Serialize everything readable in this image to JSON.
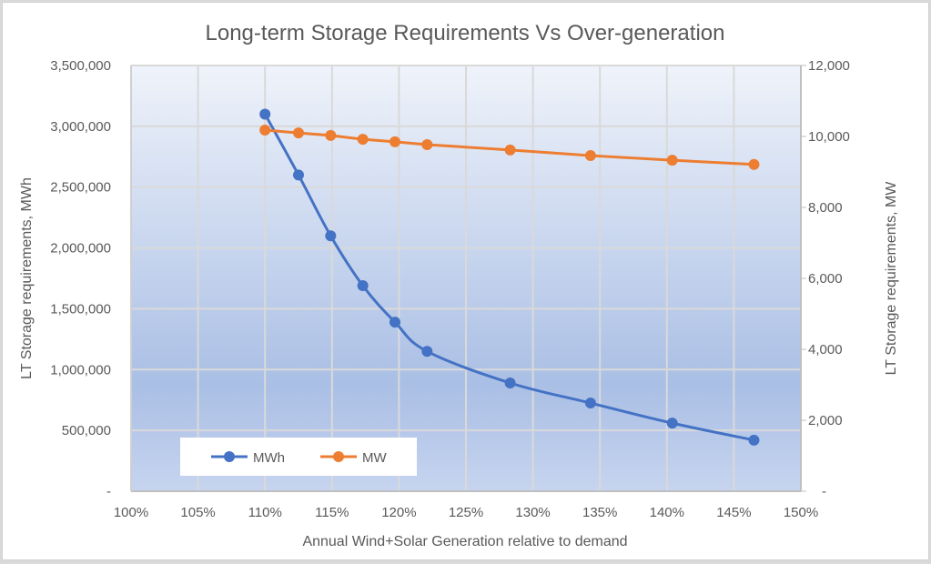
{
  "chart_data": {
    "type": "line",
    "title": "Long-term Storage Requirements Vs Over-generation",
    "xlabel": "Annual Wind+Solar Generation relative to demand",
    "ylabel": "LT Storage requirements, MWh",
    "y2label": "LT Storage requirements, MW",
    "xlim": [
      1.0,
      1.5
    ],
    "ylim": [
      0,
      3500000
    ],
    "y2lim": [
      0,
      12000
    ],
    "x_ticks": [
      "100%",
      "105%",
      "110%",
      "115%",
      "120%",
      "125%",
      "130%",
      "135%",
      "140%",
      "145%",
      "150%"
    ],
    "y_ticks": [
      "-",
      "500,000",
      "1,000,000",
      "1,500,000",
      "2,000,000",
      "2,500,000",
      "3,000,000",
      "3,500,000"
    ],
    "y2_ticks": [
      "-",
      "2,000",
      "4,000",
      "6,000",
      "8,000",
      "10,000",
      "12,000"
    ],
    "grid": true,
    "legend_position": "bottom-left",
    "series": [
      {
        "name": "MWh",
        "axis": "left",
        "color": "#4472c4",
        "smooth": true,
        "x": [
          1.1,
          1.125,
          1.149,
          1.173,
          1.197,
          1.221,
          1.283,
          1.343,
          1.404,
          1.465
        ],
        "values": [
          3100000,
          2600000,
          2100000,
          1690000,
          1390000,
          1150000,
          890000,
          725000,
          560000,
          420000
        ]
      },
      {
        "name": "MW",
        "axis": "right",
        "color": "#ed7d31",
        "smooth": false,
        "x": [
          1.1,
          1.125,
          1.149,
          1.173,
          1.197,
          1.221,
          1.283,
          1.343,
          1.404,
          1.465
        ],
        "values": [
          10180,
          10100,
          10030,
          9920,
          9850,
          9770,
          9620,
          9460,
          9330,
          9210
        ]
      }
    ]
  },
  "colors": {
    "plot_gradient_top": "#eef2fa",
    "plot_gradient_mid": "#aabfe5",
    "plot_gradient_bottom": "#c5d3ee",
    "grid": "#d9d9d9",
    "axis": "#bfbfbf",
    "text": "#595959"
  }
}
